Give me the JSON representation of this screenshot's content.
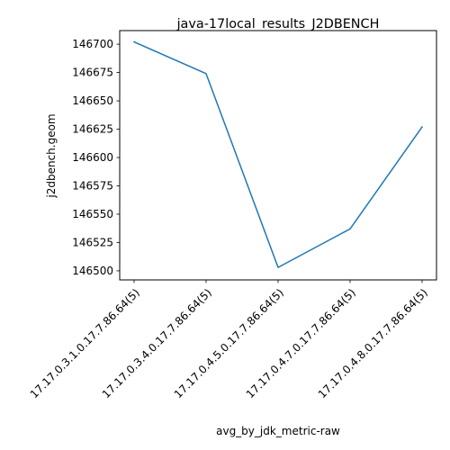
{
  "chart_data": {
    "type": "line",
    "title": "java-17local_results_J2DBENCH",
    "xlabel": "avg_by_jdk_metric-raw",
    "ylabel": "j2dbench.geom",
    "categories": [
      "17.17.0.3.1.0.17.7.86.64(5)",
      "17.17.0.3.4.0.17.7.86.64(5)",
      "17.17.0.4.5.0.17.7.86.64(5)",
      "17.17.0.4.7.0.17.7.86.64(5)",
      "17.17.0.4.8.0.17.7.86.64(5)"
    ],
    "series": [
      {
        "values": [
          146702,
          146674,
          146503,
          146537,
          146627
        ],
        "color": "#1f77b4"
      }
    ],
    "yticks": [
      146500,
      146525,
      146550,
      146575,
      146600,
      146625,
      146650,
      146675,
      146700
    ],
    "ylim": [
      146492,
      146712
    ],
    "grid": false,
    "legend": "none"
  }
}
